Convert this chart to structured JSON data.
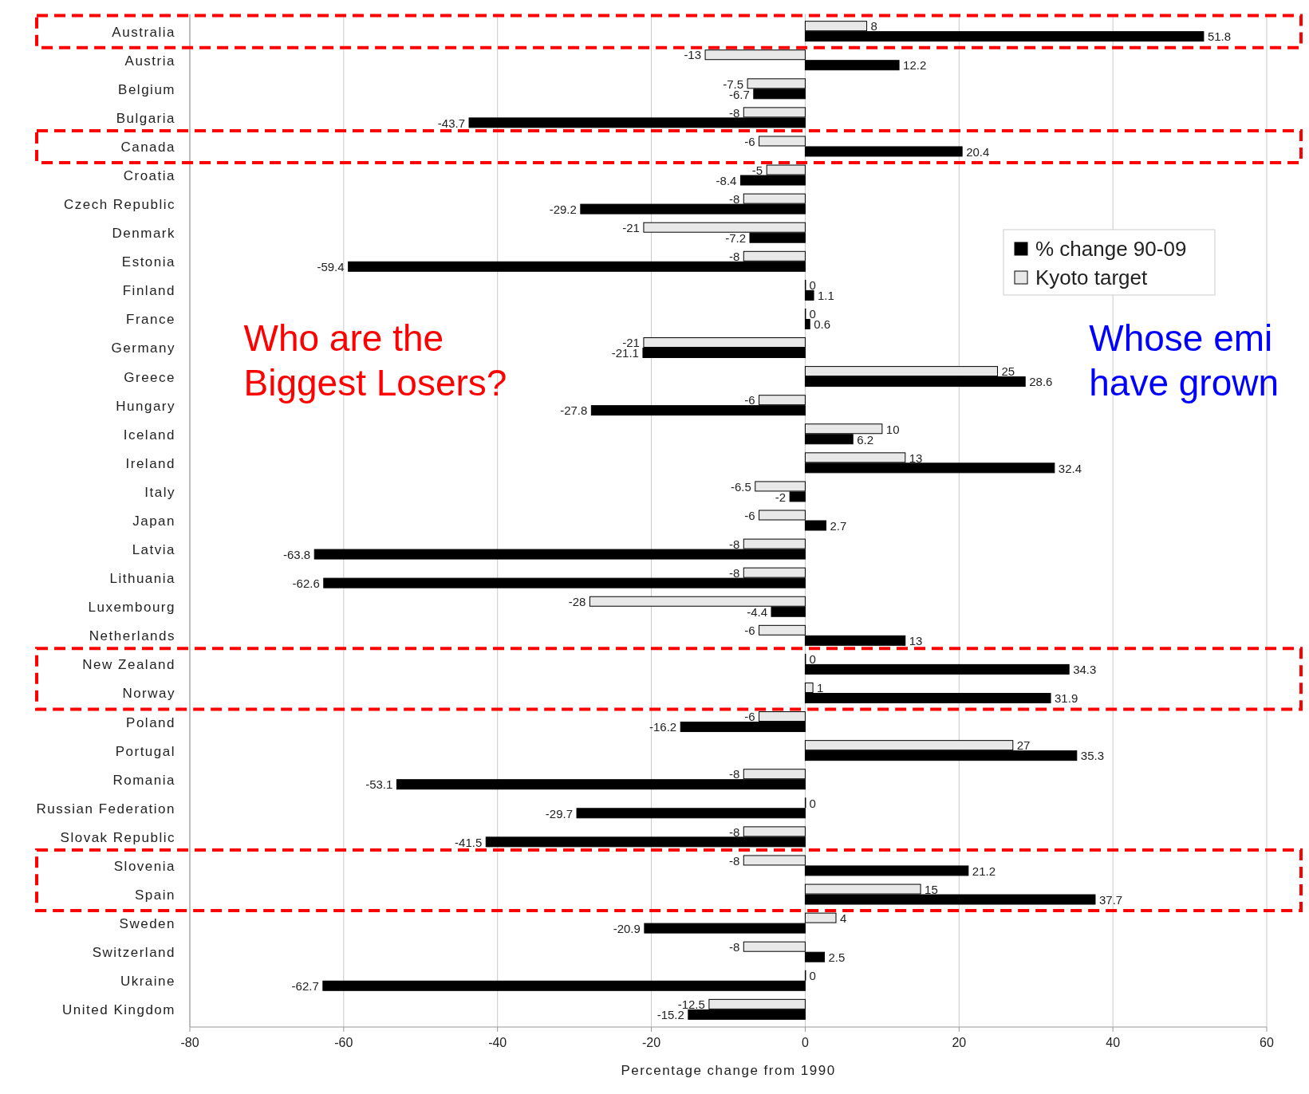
{
  "chart_data": {
    "type": "bar",
    "orientation": "horizontal",
    "xlabel": "Percentage change from 1990",
    "categories": [
      "Australia",
      "Austria",
      "Belgium",
      "Bulgaria",
      "Canada",
      "Croatia",
      "Czech Republic",
      "Denmark",
      "Estonia",
      "Finland",
      "France",
      "Germany",
      "Greece",
      "Hungary",
      "Iceland",
      "Ireland",
      "Italy",
      "Japan",
      "Latvia",
      "Lithuania",
      "Luxembourg",
      "Netherlands",
      "New Zealand",
      "Norway",
      "Poland",
      "Portugal",
      "Romania",
      "Russian Federation",
      "Slovak Republic",
      "Slovenia",
      "Spain",
      "Sweden",
      "Switzerland",
      "Ukraine",
      "United Kingdom"
    ],
    "series": [
      {
        "name": "Kyoto target",
        "color": "#e8e8e8",
        "values": [
          8,
          -13,
          -7.5,
          -8,
          -6,
          -5,
          -8,
          -21,
          -8,
          0,
          0,
          -21,
          25,
          -6,
          10,
          13,
          -6.5,
          -6,
          -8,
          -8,
          -28,
          -6,
          0,
          1,
          -6,
          27,
          -8,
          0,
          -8,
          -8,
          15,
          4,
          -8,
          0,
          -12.5
        ]
      },
      {
        "name": "% change 90-09",
        "color": "#000000",
        "values": [
          51.8,
          12.2,
          -6.7,
          -43.7,
          20.4,
          -8.4,
          -29.2,
          -7.2,
          -59.4,
          1.1,
          0.6,
          -21.1,
          28.6,
          -27.8,
          6.2,
          32.4,
          -2,
          2.7,
          -63.8,
          -62.6,
          -4.4,
          13,
          34.3,
          31.9,
          -16.2,
          35.3,
          -53.1,
          -29.7,
          -41.5,
          21.2,
          37.7,
          -20.9,
          2.5,
          -62.7,
          -15.2
        ]
      }
    ],
    "xlim": [
      -80,
      60
    ],
    "xticks": [
      -80,
      -60,
      -40,
      -20,
      0,
      20,
      40,
      60
    ],
    "grid": "x",
    "legend": "top right",
    "data_labels": true,
    "annotations": [
      "Who are the\nBiggest Losers?",
      "Whose emi\nhave grown"
    ]
  }
}
